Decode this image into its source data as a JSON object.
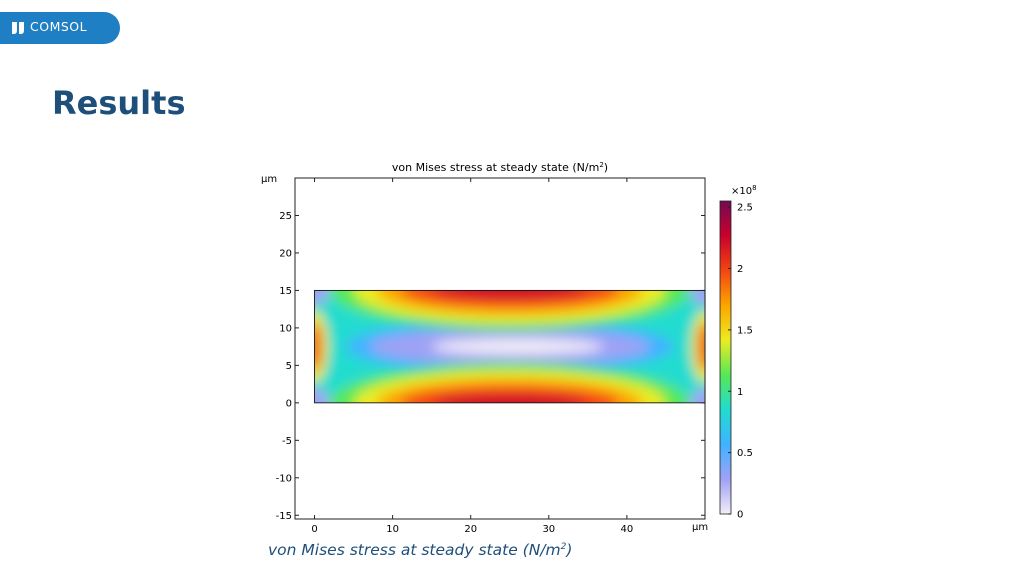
{
  "brand": {
    "logo_text": "COMSOL",
    "logo_color": "#1f7fc4"
  },
  "slide": {
    "title": "Results",
    "caption_main": "von Mises stress at steady state (N/m",
    "caption_sup": "2",
    "caption_end": ")"
  },
  "chart_data": {
    "type": "heatmap",
    "title_main": "von Mises stress at steady state (N/m",
    "title_sup": "2",
    "title_end": ")",
    "x_unit": "µm",
    "y_unit": "µm",
    "xlim": [
      -2.5,
      50
    ],
    "ylim": [
      -15.5,
      30
    ],
    "x_ticks": [
      0,
      10,
      20,
      30,
      40
    ],
    "y_ticks": [
      -15,
      -10,
      -5,
      0,
      5,
      10,
      15,
      20,
      25
    ],
    "domain_rect": {
      "x": [
        0,
        50
      ],
      "y": [
        0,
        15
      ]
    },
    "colorbar": {
      "multiplier_base": "×10",
      "multiplier_exp": "8",
      "range": [
        0,
        2.55
      ],
      "ticks": [
        0,
        0.5,
        1,
        1.5,
        2,
        2.5
      ],
      "tick_labels": [
        "0",
        "0.5",
        "1",
        "1.5",
        "2",
        "2.5"
      ],
      "colormap": [
        "#f2edf8",
        "#9fa2f4",
        "#3fb3ff",
        "#20dcd0",
        "#56e857",
        "#ecec20",
        "#fca500",
        "#f44512",
        "#c9002b",
        "#730b52"
      ]
    }
  }
}
